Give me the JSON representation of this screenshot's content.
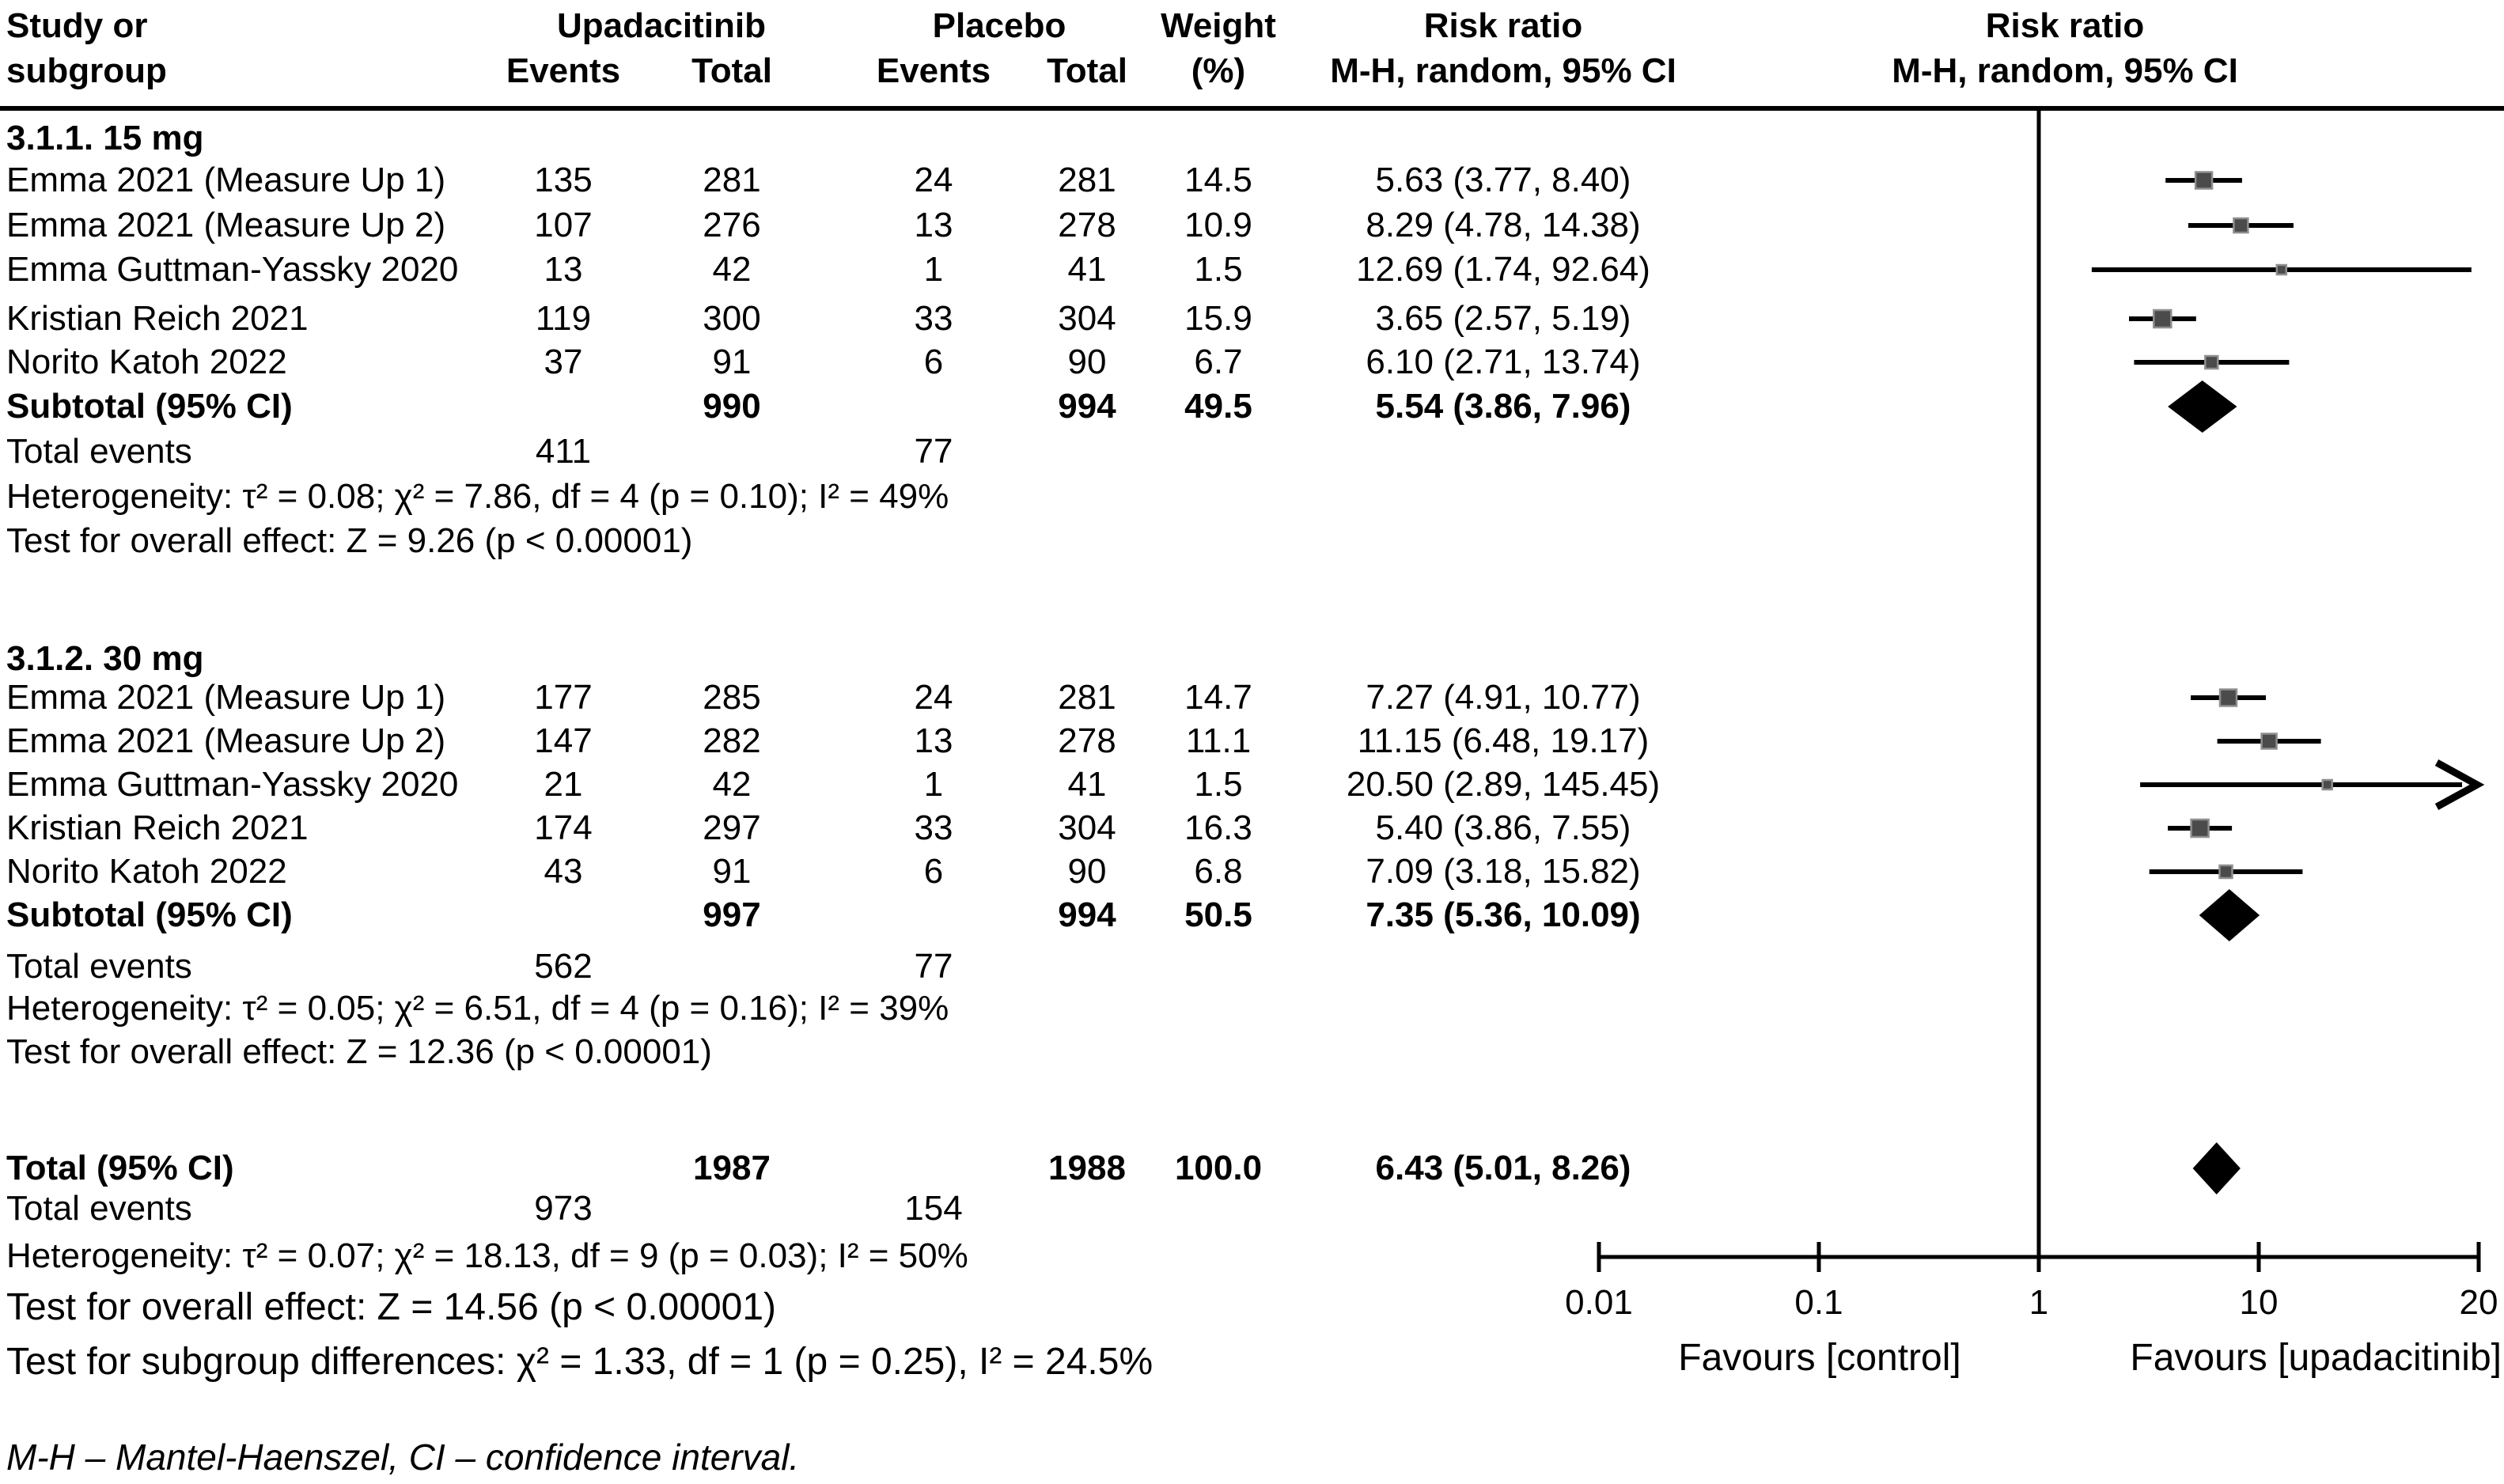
{
  "header": {
    "study_line1": "Study or",
    "study_line2": "subgroup",
    "treatment": "Upadacitinib",
    "control": "Placebo",
    "events": "Events",
    "total": "Total",
    "weight_line1": "Weight",
    "weight_line2": "(%)",
    "ratio_line1": "Risk ratio",
    "ratio_line2": "M-H, random, 95% CI",
    "plot_line1": "Risk ratio",
    "plot_line2": "M-H, random, 95% CI"
  },
  "subgroups": [
    {
      "title": "3.1.1. 15 mg",
      "studies": [
        {
          "study": "Emma 2021 (Measure Up 1)",
          "t_events": "135",
          "t_total": "281",
          "c_events": "24",
          "c_total": "281",
          "weight": "14.5",
          "rr_text": "5.63 (3.77, 8.40)"
        },
        {
          "study": "Emma 2021 (Measure Up 2)",
          "t_events": "107",
          "t_total": "276",
          "c_events": "13",
          "c_total": "278",
          "weight": "10.9",
          "rr_text": "8.29 (4.78, 14.38)"
        },
        {
          "study": "Emma Guttman-Yassky 2020",
          "t_events": "13",
          "t_total": "42",
          "c_events": "1",
          "c_total": "41",
          "weight": "1.5",
          "rr_text": "12.69 (1.74, 92.64)"
        },
        {
          "study": "Kristian Reich 2021",
          "t_events": "119",
          "t_total": "300",
          "c_events": "33",
          "c_total": "304",
          "weight": "15.9",
          "rr_text": "3.65 (2.57, 5.19)"
        },
        {
          "study": "Norito Katoh 2022",
          "t_events": "37",
          "t_total": "91",
          "c_events": "6",
          "c_total": "90",
          "weight": "6.7",
          "rr_text": "6.10 (2.71, 13.74)"
        }
      ],
      "subtotal": {
        "label": "Subtotal (95% CI)",
        "t_total": "990",
        "c_total": "994",
        "weight": "49.5",
        "rr_text": "5.54 (3.86, 7.96)"
      },
      "total_events": {
        "label": "Total events",
        "treatment": "411",
        "control": "77"
      },
      "heterogeneity": "Heterogeneity: τ² = 0.08; χ² = 7.86, df = 4 (p = 0.10); I² = 49%",
      "overall_effect": "Test for overall effect: Z = 9.26 (p < 0.00001)"
    },
    {
      "title": "3.1.2. 30 mg",
      "studies": [
        {
          "study": "Emma 2021 (Measure Up 1)",
          "t_events": "177",
          "t_total": "285",
          "c_events": "24",
          "c_total": "281",
          "weight": "14.7",
          "rr_text": "7.27 (4.91, 10.77)"
        },
        {
          "study": "Emma 2021 (Measure Up 2)",
          "t_events": "147",
          "t_total": "282",
          "c_events": "13",
          "c_total": "278",
          "weight": "11.1",
          "rr_text": "11.15 (6.48, 19.17)"
        },
        {
          "study": "Emma Guttman-Yassky 2020",
          "t_events": "21",
          "t_total": "42",
          "c_events": "1",
          "c_total": "41",
          "weight": "1.5",
          "rr_text": "20.50 (2.89, 145.45)"
        },
        {
          "study": "Kristian Reich 2021",
          "t_events": "174",
          "t_total": "297",
          "c_events": "33",
          "c_total": "304",
          "weight": "16.3",
          "rr_text": "5.40 (3.86, 7.55)"
        },
        {
          "study": "Norito Katoh 2022",
          "t_events": "43",
          "t_total": "91",
          "c_events": "6",
          "c_total": "90",
          "weight": "6.8",
          "rr_text": "7.09 (3.18, 15.82)"
        }
      ],
      "subtotal": {
        "label": "Subtotal (95% CI)",
        "t_total": "997",
        "c_total": "994",
        "weight": "50.5",
        "rr_text": "7.35 (5.36, 10.09)"
      },
      "total_events": {
        "label": "Total events",
        "treatment": "562",
        "control": "77"
      },
      "heterogeneity": "Heterogeneity: τ² = 0.05; χ² = 6.51, df = 4 (p = 0.16); I² = 39%",
      "overall_effect": "Test for overall effect: Z = 12.36 (p < 0.00001)"
    }
  ],
  "total": {
    "label": "Total (95% CI)",
    "t_total": "1987",
    "c_total": "1988",
    "weight": "100.0",
    "rr_text": "6.43 (5.01, 8.26)",
    "total_events": {
      "label": "Total events",
      "treatment": "973",
      "control": "154"
    },
    "heterogeneity": "Heterogeneity: τ² = 0.07; χ² = 18.13, df = 9 (p = 0.03); I² = 50%",
    "overall_effect": "Test for overall effect: Z = 14.56 (p < 0.00001)",
    "subgroup_differences": "Test for subgroup differences: χ² = 1.33, df = 1 (p = 0.25), I² = 24.5%"
  },
  "axis": {
    "ticks": [
      "0.01",
      "0.1",
      "1",
      "10",
      "20"
    ],
    "favours_left": "Favours [control]",
    "favours_right": "Favours [upadacitinib]"
  },
  "footnote": "M-H – Mantel-Haenszel, CI – confidence interval.",
  "colors": {
    "marker_fill": "#4b4b4b",
    "marker_border": "#8f8f8f",
    "line": "#000000",
    "diamond": "#000000",
    "text": "#000000",
    "background": "#ffffff"
  },
  "chart_data": {
    "type": "forest",
    "x_scale": "log10",
    "x_ticks": [
      0.01,
      0.1,
      1,
      10,
      20
    ],
    "effect_measure": "Risk ratio, M-H random-effects, 95% CI",
    "favours_left": "Favours [control]",
    "favours_right": "Favours [upadacitinib]",
    "subgroups": [
      {
        "name": "3.1.1. 15 mg",
        "studies": [
          {
            "study": "Emma 2021 (Measure Up 1)",
            "rr": 5.63,
            "ci": [
              3.77,
              8.4
            ],
            "weight_pct": 14.5
          },
          {
            "study": "Emma 2021 (Measure Up 2)",
            "rr": 8.29,
            "ci": [
              4.78,
              14.38
            ],
            "weight_pct": 10.9
          },
          {
            "study": "Emma Guttman-Yassky 2020",
            "rr": 12.69,
            "ci": [
              1.74,
              92.64
            ],
            "weight_pct": 1.5
          },
          {
            "study": "Kristian Reich 2021",
            "rr": 3.65,
            "ci": [
              2.57,
              5.19
            ],
            "weight_pct": 15.9
          },
          {
            "study": "Norito Katoh 2022",
            "rr": 6.1,
            "ci": [
              2.71,
              13.74
            ],
            "weight_pct": 6.7
          }
        ],
        "subtotal": {
          "rr": 5.54,
          "ci": [
            3.86,
            7.96
          ],
          "weight_pct": 49.5
        }
      },
      {
        "name": "3.1.2. 30 mg",
        "studies": [
          {
            "study": "Emma 2021 (Measure Up 1)",
            "rr": 7.27,
            "ci": [
              4.91,
              10.77
            ],
            "weight_pct": 14.7
          },
          {
            "study": "Emma 2021 (Measure Up 2)",
            "rr": 11.15,
            "ci": [
              6.48,
              19.17
            ],
            "weight_pct": 11.1
          },
          {
            "study": "Emma Guttman-Yassky 2020",
            "rr": 20.5,
            "ci": [
              2.89,
              145.45
            ],
            "weight_pct": 1.5
          },
          {
            "study": "Kristian Reich 2021",
            "rr": 5.4,
            "ci": [
              3.86,
              7.55
            ],
            "weight_pct": 16.3
          },
          {
            "study": "Norito Katoh 2022",
            "rr": 7.09,
            "ci": [
              3.18,
              15.82
            ],
            "weight_pct": 6.8
          }
        ],
        "subtotal": {
          "rr": 7.35,
          "ci": [
            5.36,
            10.09
          ],
          "weight_pct": 50.5
        }
      }
    ],
    "overall": {
      "rr": 6.43,
      "ci": [
        5.01,
        8.26
      ],
      "weight_pct": 100.0
    }
  }
}
